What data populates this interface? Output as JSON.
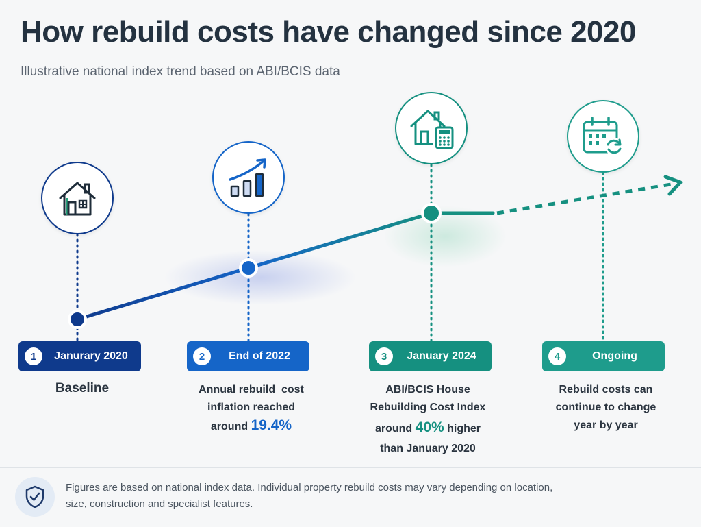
{
  "title": "How rebuild costs have changed since 2020",
  "subtitle": "Illustrative national index trend based on ABI/BCIS data",
  "colors": {
    "dark_blue": "#0f3a8c",
    "mid_blue": "#1565c8",
    "teal": "#159080",
    "teal_light": "#1e9c8c"
  },
  "milestones": [
    {
      "number": "1",
      "label": "Janurary 2020",
      "icon": "house-icon",
      "desc_lines": [
        "Baseline"
      ]
    },
    {
      "number": "2",
      "label": "End of 2022",
      "icon": "rising-bar-chart-icon",
      "desc_lines": [
        "Annual rebuild  cost",
        "inflation reached"
      ],
      "desc_prefix": "around",
      "desc_highlight": "19.4%",
      "desc_suffix": ""
    },
    {
      "number": "3",
      "label": "January 2024",
      "icon": "house-calculator-icon",
      "desc_lines": [
        "ABI/BCIS House",
        "Rebuilding Cost Index"
      ],
      "desc_prefix": "around",
      "desc_highlight": "40%",
      "desc_suffix": "higher",
      "desc_last": "than January 2020"
    },
    {
      "number": "4",
      "label": "Ongoing",
      "icon": "calendar-refresh-icon",
      "desc_lines": [
        "Rebuild costs can",
        "continue to change",
        "year by year"
      ]
    }
  ],
  "footer": {
    "icon": "shield-check-icon",
    "text": "Figures are based on national index data. Individual property rebuild costs may vary depending on location, size, construction and specialist features."
  }
}
